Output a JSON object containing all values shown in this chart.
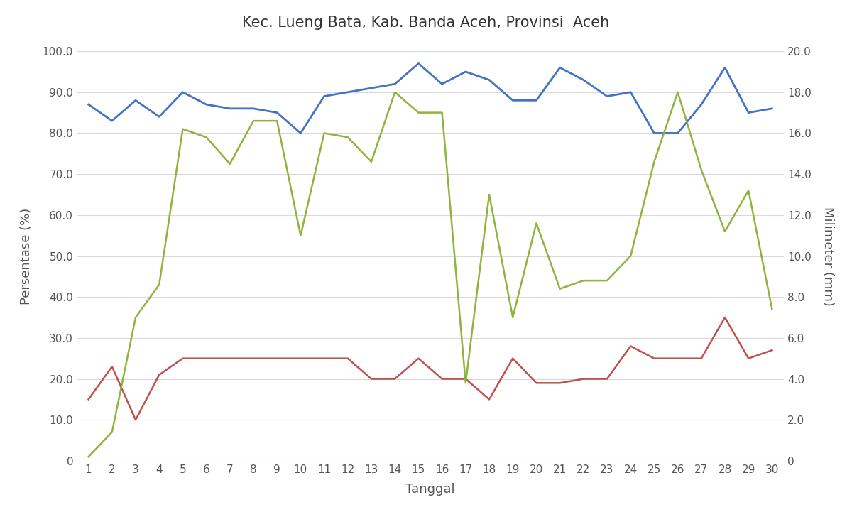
{
  "title": "Kec. Lueng Bata, Kab. Banda Aceh, Provinsi  Aceh",
  "xlabel": "Tanggal",
  "ylabel_left": "Persentase (%)",
  "ylabel_right": "Milimeter (mm)",
  "tanggal": [
    1,
    2,
    3,
    4,
    5,
    6,
    7,
    8,
    9,
    10,
    11,
    12,
    13,
    14,
    15,
    16,
    17,
    18,
    19,
    20,
    21,
    22,
    23,
    24,
    25,
    26,
    27,
    28,
    29,
    30
  ],
  "blue_line": [
    87,
    83,
    88,
    84,
    90,
    87,
    86,
    86,
    85,
    80,
    89,
    90,
    91,
    92,
    97,
    92,
    95,
    93,
    88,
    88,
    96,
    93,
    89,
    90,
    80,
    80,
    87,
    96,
    85,
    86
  ],
  "red_line": [
    15,
    23,
    10,
    21,
    25,
    25,
    25,
    25,
    25,
    25,
    25,
    25,
    20,
    20,
    25,
    20,
    20,
    15,
    25,
    19,
    19,
    20,
    20,
    28,
    25,
    25,
    25,
    35,
    25,
    27
  ],
  "green_line_mm": [
    0.2,
    1.4,
    7.0,
    8.6,
    16.2,
    15.8,
    14.5,
    16.6,
    16.6,
    11.0,
    16.0,
    15.8,
    14.6,
    18.0,
    17.0,
    17.0,
    3.8,
    13.0,
    7.0,
    11.6,
    8.4,
    8.8,
    8.8,
    10.0,
    14.6,
    18.0,
    14.2,
    11.2,
    13.2,
    7.4
  ],
  "blue_color": "#4472C4",
  "red_color": "#C0504D",
  "green_color": "#8DB43B",
  "bg_color": "#FFFFFF",
  "grid_color": "#D9D9D9",
  "ylim_left": [
    0,
    100
  ],
  "ylim_right": [
    0,
    20
  ],
  "yticks_left": [
    0,
    10.0,
    20.0,
    30.0,
    40.0,
    50.0,
    60.0,
    70.0,
    80.0,
    90.0,
    100.0
  ],
  "yticks_right": [
    0,
    2.0,
    4.0,
    6.0,
    8.0,
    10.0,
    12.0,
    14.0,
    16.0,
    18.0,
    20.0
  ],
  "ytick_labels_left": [
    "0",
    "10.0",
    "20.0",
    "30.0",
    "40.0",
    "50.0",
    "60.0",
    "70.0",
    "80.0",
    "90.0",
    "100.0"
  ],
  "ytick_labels_right": [
    "0",
    "2.0",
    "4.0",
    "6.0",
    "8.0",
    "10.0",
    "12.0",
    "14.0",
    "16.0",
    "18.0",
    "20.0"
  ]
}
